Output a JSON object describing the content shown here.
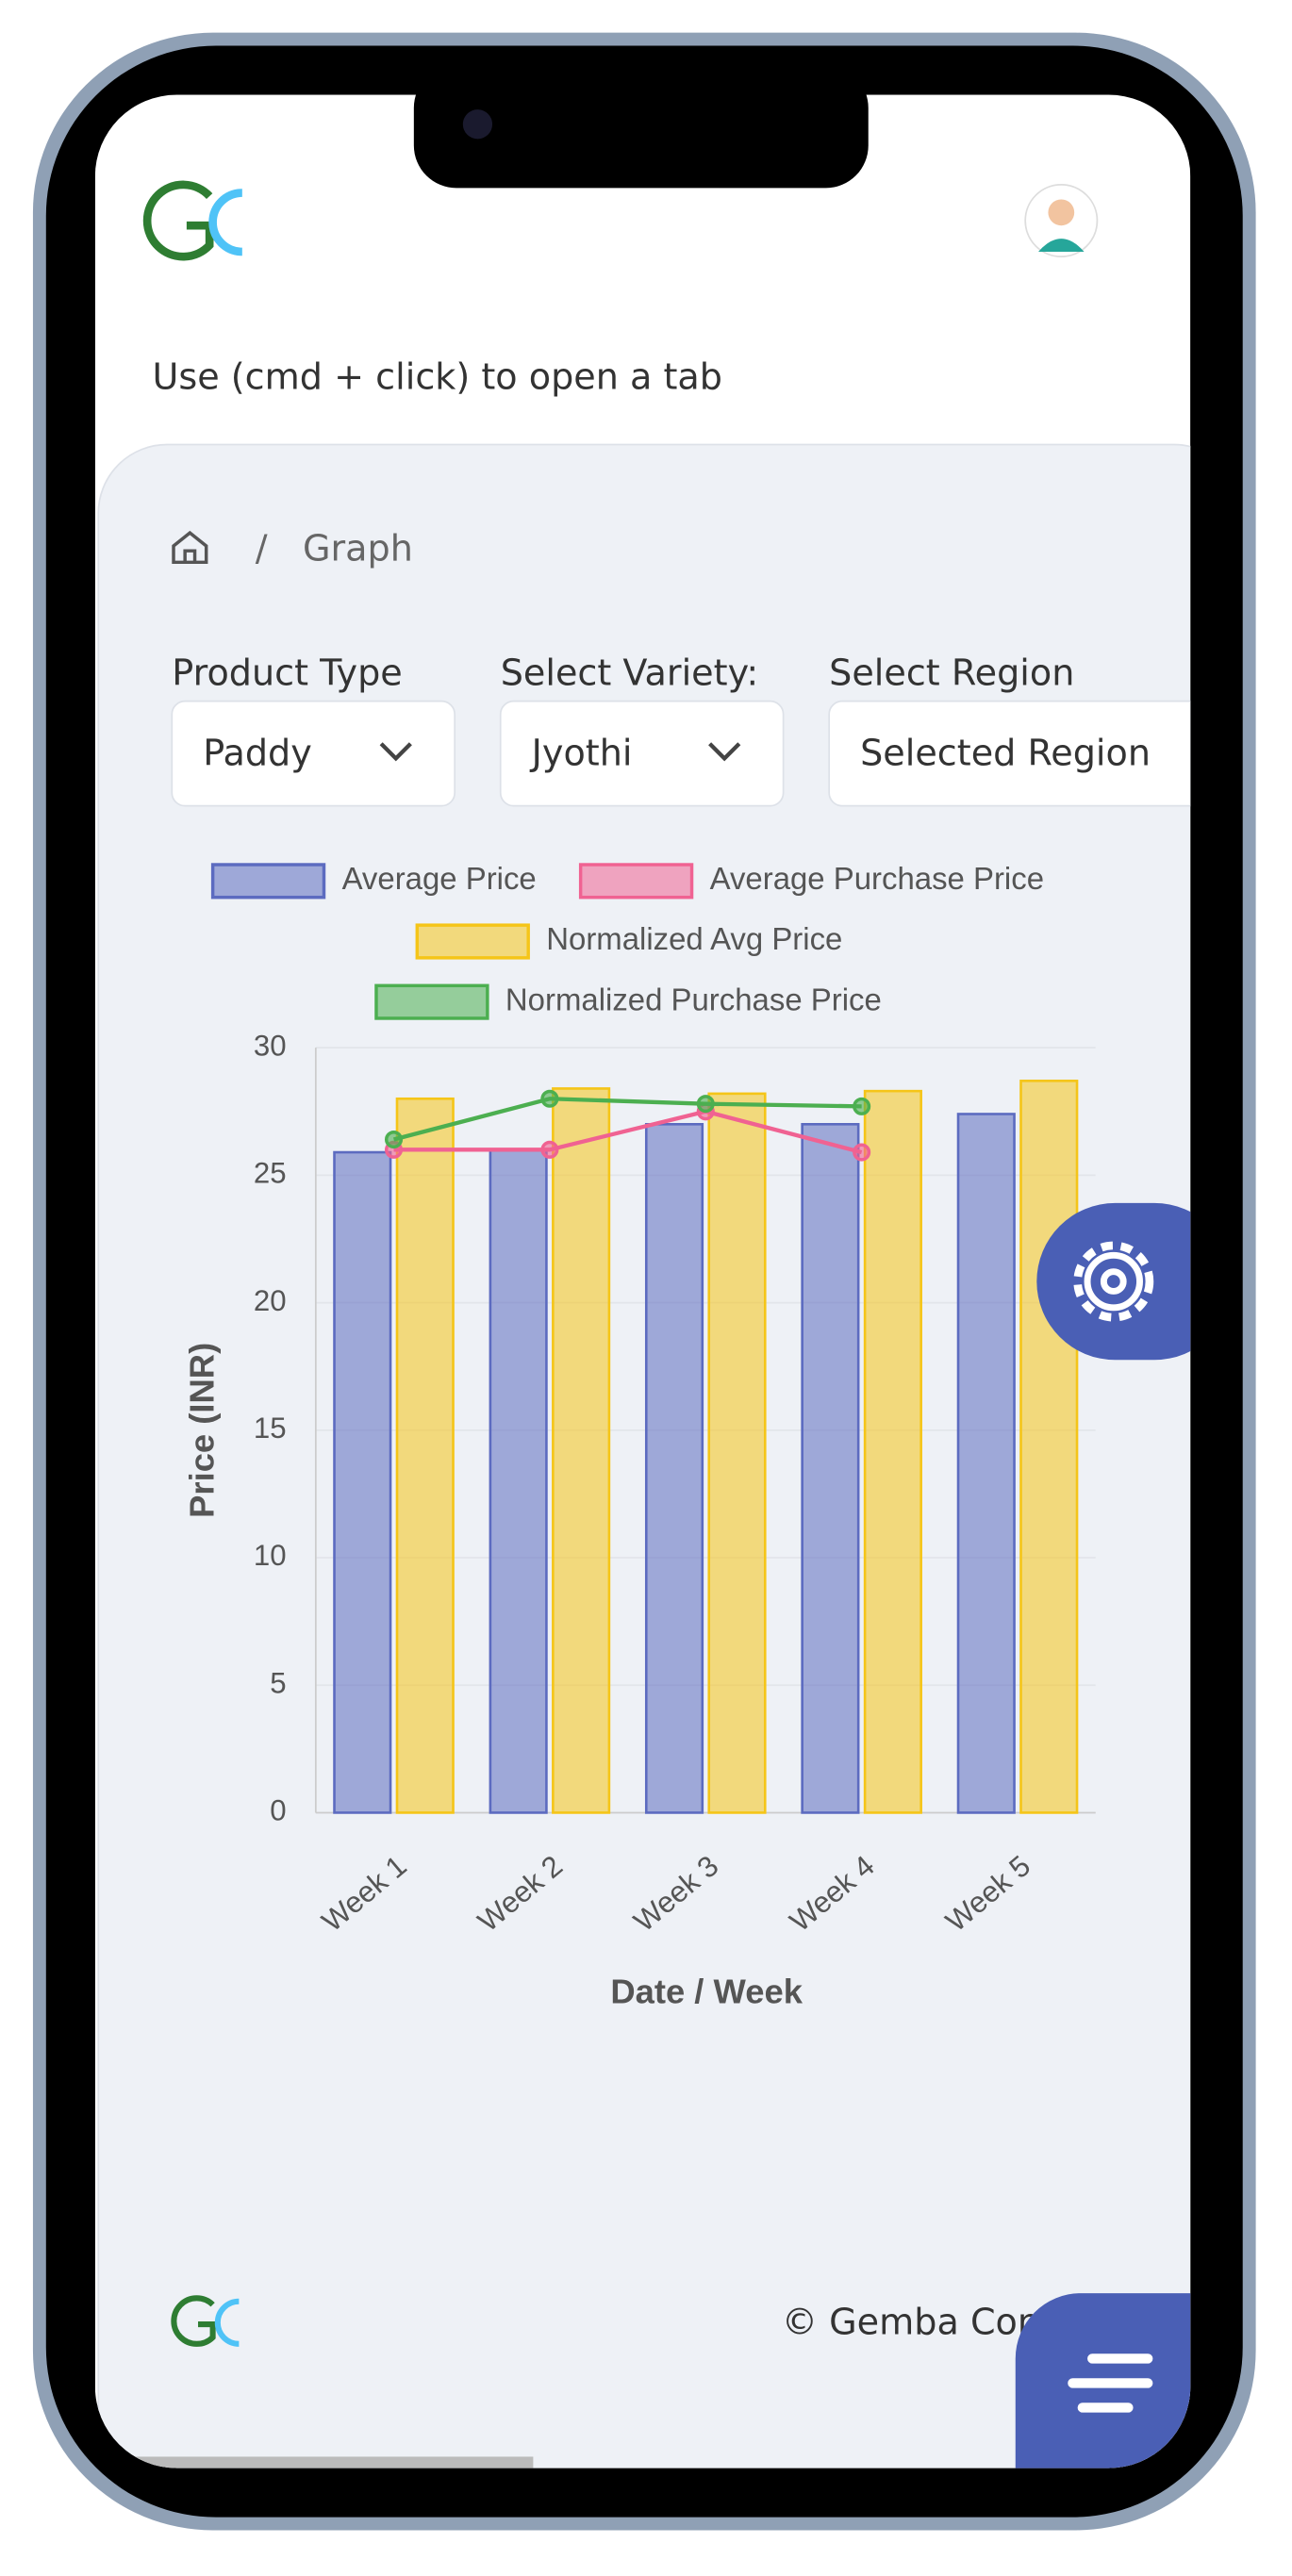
{
  "hint": "Use (cmd + click) to open a tab",
  "breadcrumb": {
    "separator": "/",
    "current": "Graph"
  },
  "filters": [
    {
      "label": "Product Type",
      "value": "Paddy"
    },
    {
      "label": "Select Variety:",
      "value": "Jyothi"
    },
    {
      "label": "Select Region",
      "value": "Selected Region"
    }
  ],
  "chart_data": {
    "type": "bar",
    "categories": [
      "Week 1",
      "Week 2",
      "Week 3",
      "Week 4",
      "Week 5"
    ],
    "series": [
      {
        "name": "Average Price",
        "type": "bar",
        "color": "#5c6bc0",
        "values": [
          25.9,
          26,
          27,
          27,
          27.4
        ]
      },
      {
        "name": "Average Purchase Price",
        "type": "line",
        "color": "#f06292",
        "values": [
          26,
          26,
          27.5,
          25.9,
          null
        ]
      },
      {
        "name": "Normalized Avg Price",
        "type": "bar",
        "color": "#f5c518",
        "values": [
          28,
          28.4,
          28.2,
          28.3,
          28.7
        ]
      },
      {
        "name": "Normalized Purchase Price",
        "type": "line",
        "color": "#4caf50",
        "values": [
          26.4,
          28,
          27.8,
          27.7,
          null
        ]
      }
    ],
    "ylim": [
      0,
      30
    ],
    "yticks": [
      0,
      5,
      10,
      15,
      20,
      25,
      30
    ],
    "grid": true,
    "x_label": "Date / Week",
    "y_label": "Price (INR)"
  },
  "footer": {
    "copyright": "© Gemba Conc"
  }
}
